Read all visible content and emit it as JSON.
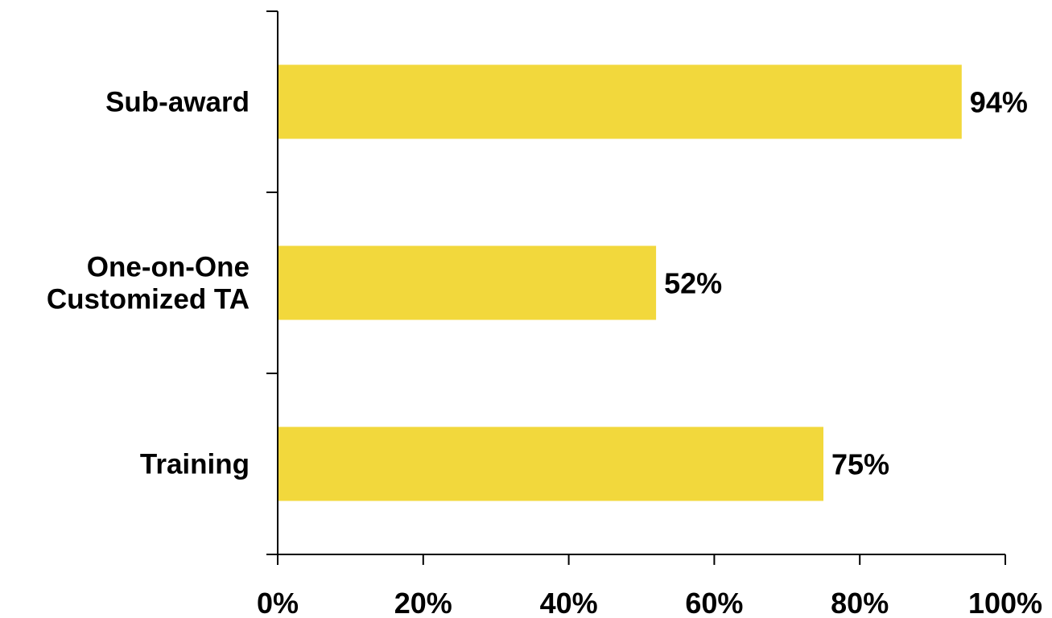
{
  "chart_data": {
    "type": "bar",
    "orientation": "horizontal",
    "categories": [
      "Sub-award",
      "One-on-One Customized TA",
      "Training"
    ],
    "category_lines": [
      [
        "Sub-award"
      ],
      [
        "One-on-One",
        "Customized TA"
      ],
      [
        "Training"
      ]
    ],
    "series": [
      {
        "values": [
          94,
          52,
          75
        ]
      }
    ],
    "data_labels": [
      "94%",
      "52%",
      "75%"
    ],
    "x_ticks": [
      "0%",
      "20%",
      "40%",
      "60%",
      "80%",
      "100%"
    ],
    "xlim": [
      0,
      100
    ],
    "grid": false,
    "legend": "none",
    "bar_color": "#F2D83C",
    "axis_color": "#000000"
  }
}
